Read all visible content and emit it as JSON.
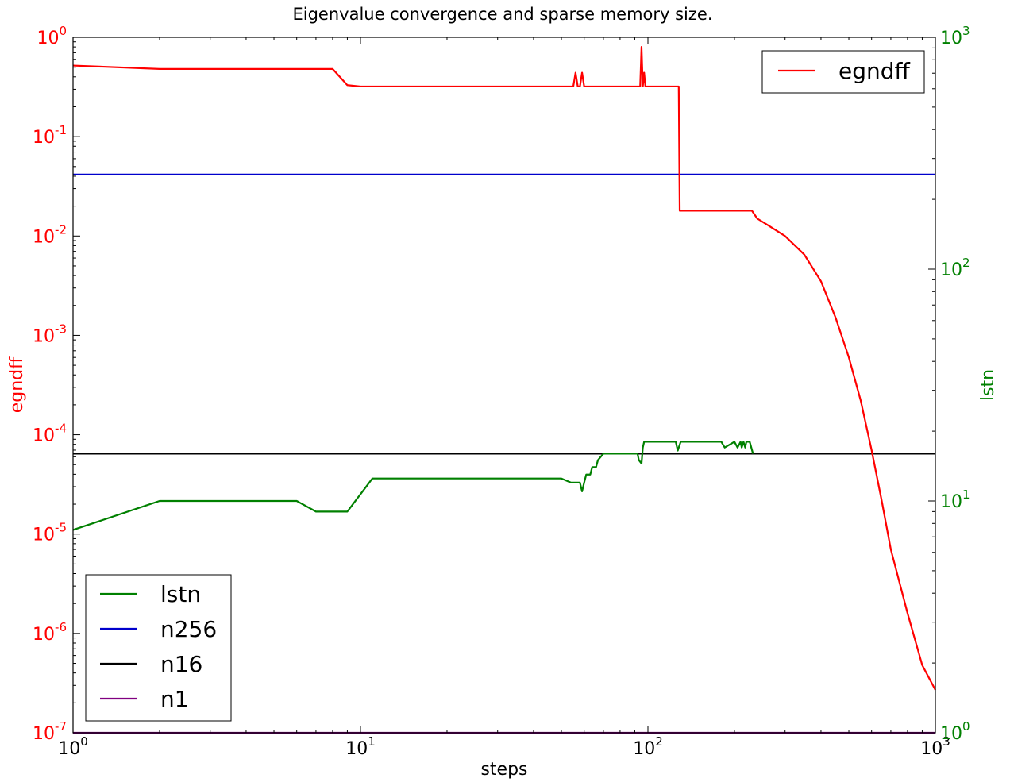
{
  "chart_data": {
    "type": "line",
    "title": "Eigenvalue convergence and sparse memory size.",
    "xlabel": "steps",
    "ylabel_left": "egndff",
    "ylabel_right": "lstn",
    "xscale": "log",
    "yscale_left": "log",
    "yscale_right": "log",
    "xlim": [
      1,
      1000
    ],
    "ylim_left": [
      1e-07,
      1
    ],
    "ylim_right": [
      1,
      1000
    ],
    "grid": false,
    "x_ticks": [
      {
        "base": "10",
        "exp": "0",
        "value": 1
      },
      {
        "base": "10",
        "exp": "1",
        "value": 10
      },
      {
        "base": "10",
        "exp": "2",
        "value": 100
      },
      {
        "base": "10",
        "exp": "3",
        "value": 1000
      }
    ],
    "y_ticks_left": [
      {
        "base": "10",
        "exp": "0",
        "value": 1
      },
      {
        "base": "10",
        "exp": "-1",
        "value": 0.1
      },
      {
        "base": "10",
        "exp": "-2",
        "value": 0.01
      },
      {
        "base": "10",
        "exp": "-3",
        "value": 0.001
      },
      {
        "base": "10",
        "exp": "-4",
        "value": 0.0001
      },
      {
        "base": "10",
        "exp": "-5",
        "value": 1e-05
      },
      {
        "base": "10",
        "exp": "-6",
        "value": 1e-06
      },
      {
        "base": "10",
        "exp": "-7",
        "value": 1e-07
      }
    ],
    "y_ticks_right": [
      {
        "base": "10",
        "exp": "3",
        "value": 1000
      },
      {
        "base": "10",
        "exp": "2",
        "value": 100
      },
      {
        "base": "10",
        "exp": "1",
        "value": 10
      },
      {
        "base": "10",
        "exp": "0",
        "value": 1
      }
    ],
    "legend_top_right": {
      "placement": "top-right",
      "entries": [
        "egndff"
      ]
    },
    "legend_bottom_left": {
      "placement": "bottom-left",
      "entries": [
        "lstn",
        "n256",
        "n16",
        "n1"
      ]
    },
    "colors": {
      "egndff": "#ff0000",
      "lstn": "#008000",
      "n256": "#0000cc",
      "n16": "#000000",
      "n1": "#800080",
      "left_axis": "#ff0000",
      "right_axis": "#008000"
    },
    "series": [
      {
        "name": "egndff",
        "axis": "left",
        "x": [
          1,
          2,
          8,
          9,
          10,
          20,
          55,
          56,
          57,
          58,
          59,
          60,
          61,
          62,
          70,
          94,
          95,
          96,
          97,
          98,
          100,
          128,
          129,
          130,
          150,
          200,
          230,
          240,
          260,
          300,
          350,
          400,
          450,
          500,
          550,
          600,
          650,
          700,
          800,
          900,
          1000
        ],
        "y": [
          0.52,
          0.48,
          0.48,
          0.33,
          0.32,
          0.32,
          0.32,
          0.44,
          0.32,
          0.32,
          0.44,
          0.32,
          0.32,
          0.32,
          0.32,
          0.32,
          0.8,
          0.32,
          0.44,
          0.32,
          0.32,
          0.32,
          0.018,
          0.018,
          0.018,
          0.018,
          0.018,
          0.015,
          0.013,
          0.01,
          0.0065,
          0.0035,
          0.0015,
          0.0006,
          0.00022,
          7e-05,
          2.2e-05,
          7e-06,
          1.6e-06,
          4.8e-07,
          2.7e-07
        ]
      },
      {
        "name": "lstn",
        "axis": "right",
        "x": [
          1,
          2,
          6,
          7,
          9,
          11,
          20,
          50,
          54,
          56,
          58,
          59,
          60,
          61,
          63,
          64,
          66,
          67,
          70,
          92,
          93,
          95,
          96,
          97,
          100,
          125,
          127,
          130,
          150,
          180,
          185,
          200,
          205,
          210,
          212,
          215,
          218,
          220,
          226,
          232
        ],
        "y": [
          7.5,
          10,
          10,
          9,
          9,
          12.5,
          12.5,
          12.5,
          12,
          12,
          12,
          11,
          12,
          13,
          13,
          14,
          14,
          15,
          16,
          16,
          15,
          14.5,
          17,
          18,
          18,
          18,
          16.5,
          18,
          18,
          18,
          17,
          18,
          17,
          18,
          17,
          18,
          17,
          18,
          18,
          16
        ]
      },
      {
        "name": "n256",
        "axis": "right",
        "x": [
          1,
          1000
        ],
        "y": [
          256,
          256
        ]
      },
      {
        "name": "n16",
        "axis": "right",
        "x": [
          1,
          1000
        ],
        "y": [
          16,
          16
        ]
      },
      {
        "name": "n1",
        "axis": "right",
        "x": [
          1,
          1000
        ],
        "y": [
          1,
          1
        ]
      }
    ]
  }
}
